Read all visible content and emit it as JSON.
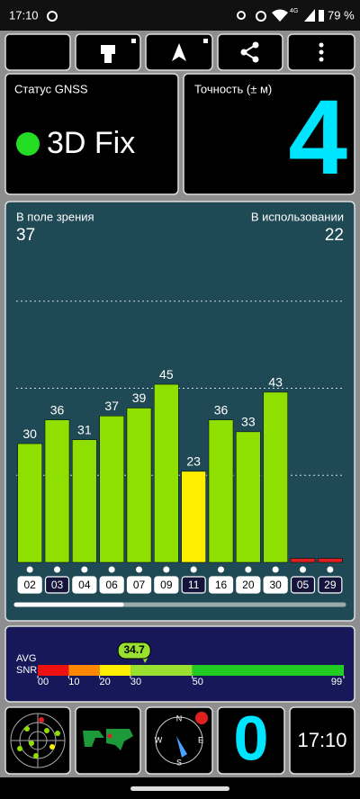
{
  "status_bar": {
    "time": "17:10",
    "network": "4G",
    "battery": "79 %"
  },
  "gnss_status": {
    "label": "Статус GNSS",
    "value": "3D Fix"
  },
  "accuracy": {
    "label": "Точность (± м)",
    "value": 4
  },
  "chart_data": {
    "type": "bar",
    "left_label": "В поле зрения",
    "left_value": 37,
    "right_label": "В использовании",
    "right_value": 22,
    "categories": [
      "02",
      "03",
      "04",
      "06",
      "07",
      "09",
      "11",
      "16",
      "20",
      "30",
      "05",
      "29"
    ],
    "values": [
      30,
      36,
      31,
      37,
      39,
      45,
      23,
      36,
      33,
      43,
      1,
      1
    ],
    "value_labels": [
      "30",
      "36",
      "31",
      "37",
      "39",
      "45",
      "23",
      "36",
      "33",
      "43",
      null,
      null
    ],
    "colors": [
      "#8fe000",
      "#8fe000",
      "#8fe000",
      "#8fe000",
      "#8fe000",
      "#8fe000",
      "#ffee00",
      "#8fe000",
      "#8fe000",
      "#8fe000",
      "#e02020",
      "#e02020"
    ],
    "highlighted": [
      false,
      true,
      false,
      false,
      false,
      false,
      true,
      false,
      false,
      false,
      true,
      true
    ],
    "ylim": [
      0,
      88
    ]
  },
  "snr": {
    "label_top": "AVG",
    "label_bottom": "SNR",
    "value": 34.7,
    "xlim": [
      0,
      99
    ],
    "xticks": [
      {
        "value": 0,
        "label": "00"
      },
      10,
      20,
      30,
      50,
      99
    ],
    "segment_colors": [
      "#ee1111",
      "#ff8800",
      "#ffee00",
      "#99e030",
      "#22cc22"
    ]
  },
  "compass": [
    "N",
    "E",
    "S",
    "W"
  ],
  "bottom": {
    "count": 0,
    "clock": "17:10"
  }
}
